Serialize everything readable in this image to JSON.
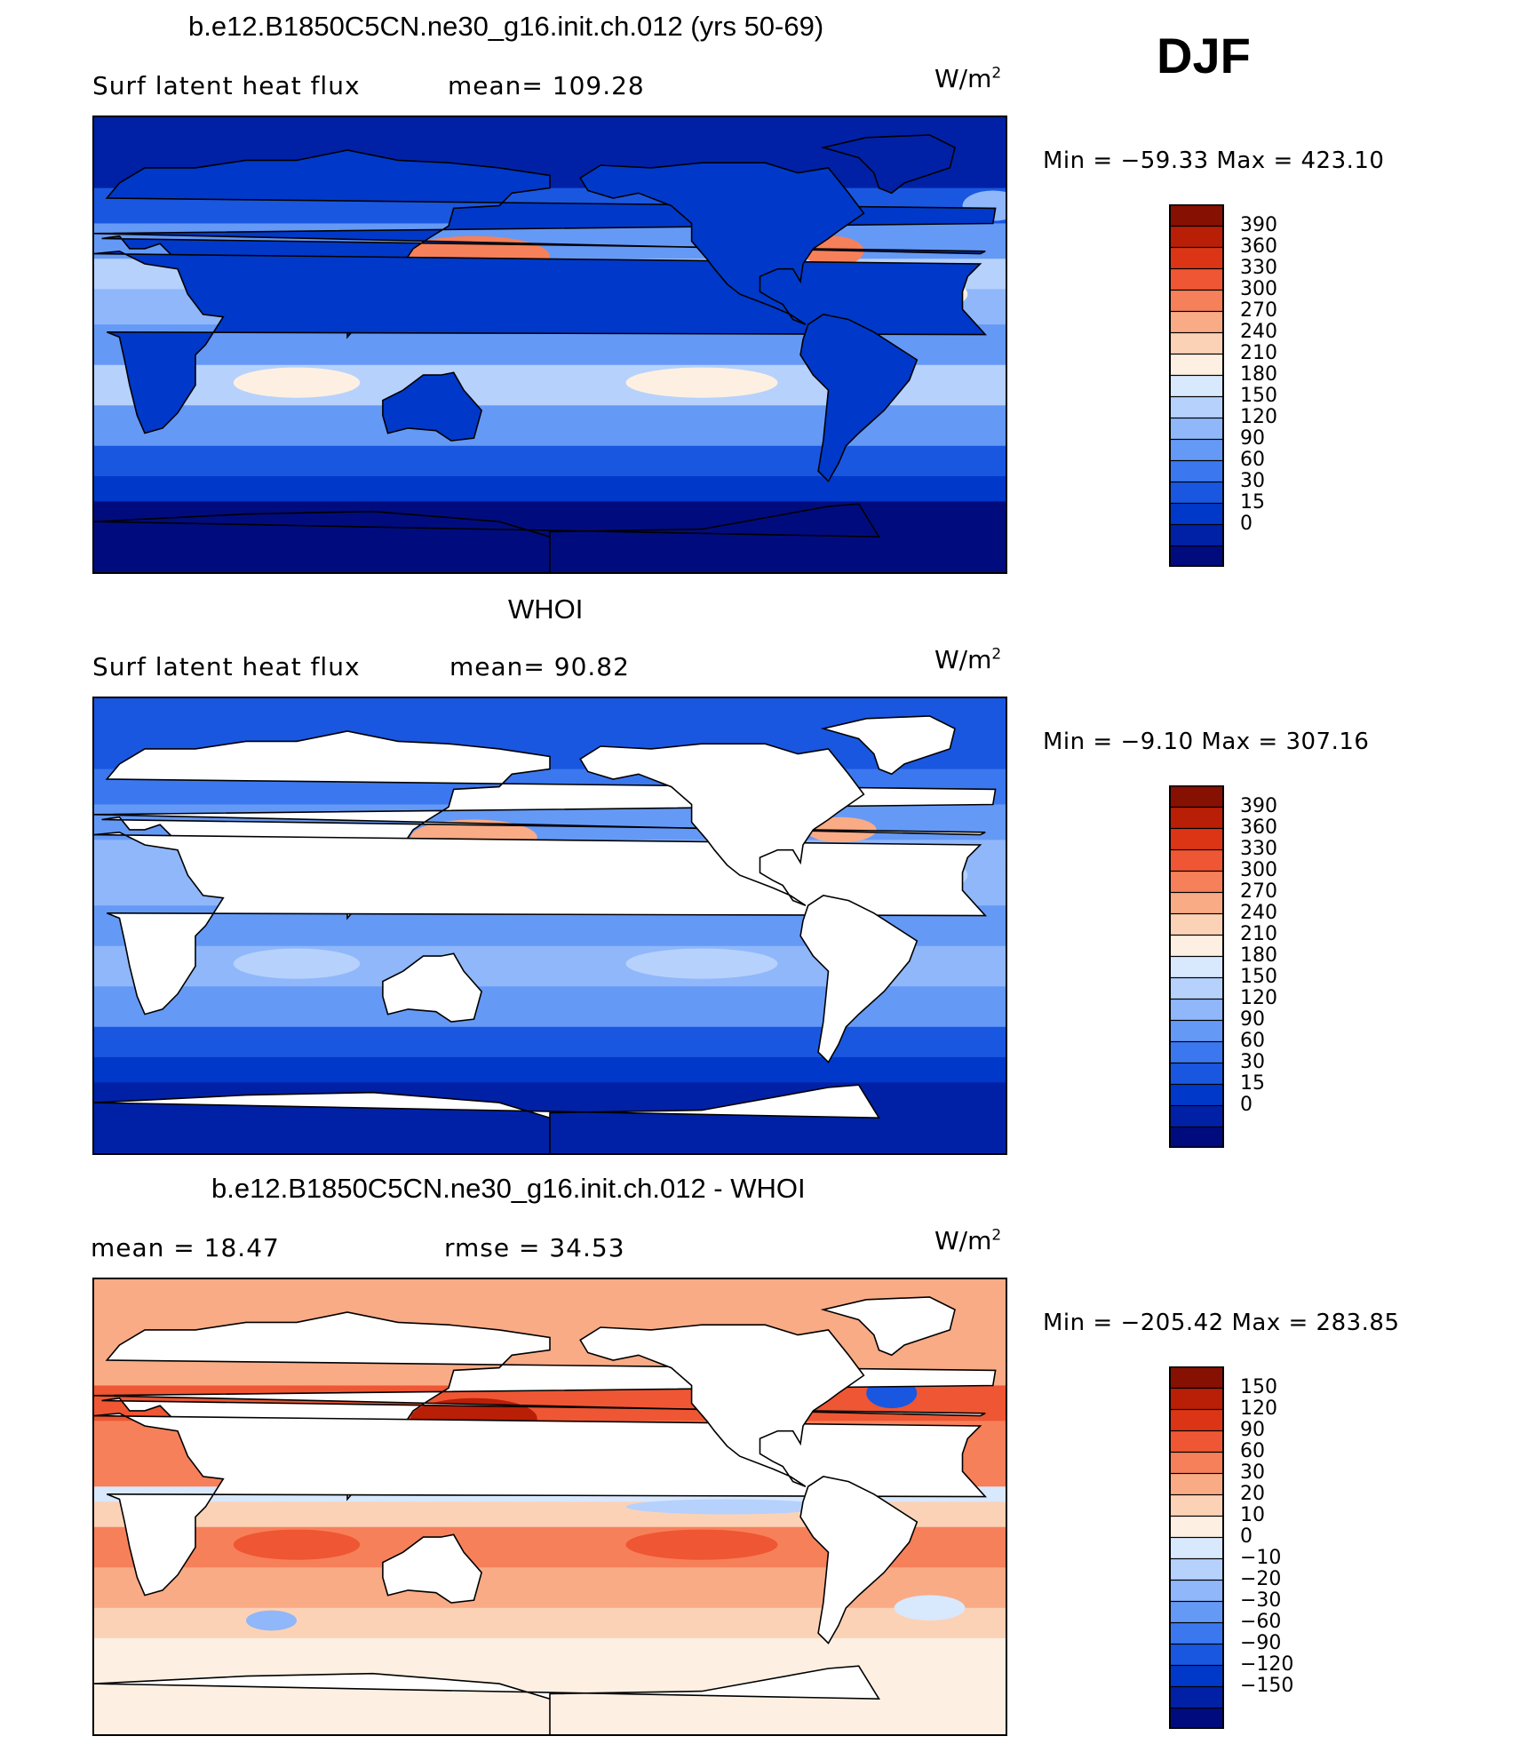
{
  "season": "DJF",
  "units_label": "W/m",
  "units_exp": "2",
  "colors": {
    "scale": [
      "#000c7d",
      "#0021a6",
      "#0039c9",
      "#1a57e0",
      "#3b78ef",
      "#6599f6",
      "#8fb7fa",
      "#b6d1fc",
      "#d8e8fd",
      "#fdf0e2",
      "#fcd2b6",
      "#f9ab86",
      "#f6805a",
      "#ef5633",
      "#dc3515",
      "#b91e06",
      "#861002"
    ],
    "diff_scale": [
      "#000c7d",
      "#0021a6",
      "#0039c9",
      "#1a57e0",
      "#3b78ef",
      "#6599f6",
      "#8fb7fa",
      "#b6d1fc",
      "#d8e8fd",
      "#fdf0e2",
      "#fcd2b6",
      "#f9ab86",
      "#f6805a",
      "#ef5633",
      "#dc3515",
      "#b91e06",
      "#861002"
    ]
  },
  "panels": [
    {
      "title": "b.e12.B1850C5CN.ne30_g16.init.ch.012 (yrs 50-69)",
      "left_label": "Surf latent heat flux",
      "mid_label": "mean=  109.28",
      "min_label": "Min  =  −59.33  Max  =  423.10",
      "levels": [
        "390",
        "360",
        "330",
        "300",
        "270",
        "240",
        "210",
        "180",
        "150",
        "120",
        "90",
        "60",
        "30",
        "15",
        "0"
      ],
      "mode": "model"
    },
    {
      "title": "WHOI",
      "left_label": "Surf latent heat flux",
      "mid_label": "mean=   90.82",
      "min_label": "Min  =    −9.10  Max  =  307.16",
      "levels": [
        "390",
        "360",
        "330",
        "300",
        "270",
        "240",
        "210",
        "180",
        "150",
        "120",
        "90",
        "60",
        "30",
        "15",
        "0"
      ],
      "mode": "obs"
    },
    {
      "title": "b.e12.B1850C5CN.ne30_g16.init.ch.012 - WHOI",
      "left_label": "mean  =    18.47",
      "mid_label": "rmse  =    34.53",
      "min_label": "Min  =  −205.42  Max  =  283.85",
      "levels": [
        "150",
        "120",
        "90",
        "60",
        "30",
        "20",
        "10",
        "0",
        "−10",
        "−20",
        "−30",
        "−60",
        "−90",
        "−120",
        "−150"
      ],
      "mode": "diff"
    }
  ],
  "chart_data": [
    {
      "type": "heatmap",
      "title": "b.e12.B1850C5CN.ne30_g16.init.ch.012 (yrs 50-69)",
      "variable": "Surf latent heat flux",
      "season": "DJF",
      "units": "W/m2",
      "mean": 109.28,
      "min": -59.33,
      "max": 423.1,
      "contour_levels": [
        0,
        15,
        30,
        60,
        90,
        120,
        150,
        180,
        210,
        240,
        270,
        300,
        330,
        360,
        390
      ]
    },
    {
      "type": "heatmap",
      "title": "WHOI",
      "variable": "Surf latent heat flux",
      "season": "DJF",
      "units": "W/m2",
      "mean": 90.82,
      "min": -9.1,
      "max": 307.16,
      "contour_levels": [
        0,
        15,
        30,
        60,
        90,
        120,
        150,
        180,
        210,
        240,
        270,
        300,
        330,
        360,
        390
      ]
    },
    {
      "type": "heatmap",
      "title": "b.e12.B1850C5CN.ne30_g16.init.ch.012 - WHOI",
      "season": "DJF",
      "units": "W/m2",
      "mean": 18.47,
      "rmse": 34.53,
      "min": -205.42,
      "max": 283.85,
      "contour_levels": [
        -150,
        -120,
        -90,
        -60,
        -30,
        -20,
        -10,
        0,
        10,
        20,
        30,
        60,
        90,
        120,
        150
      ]
    }
  ]
}
